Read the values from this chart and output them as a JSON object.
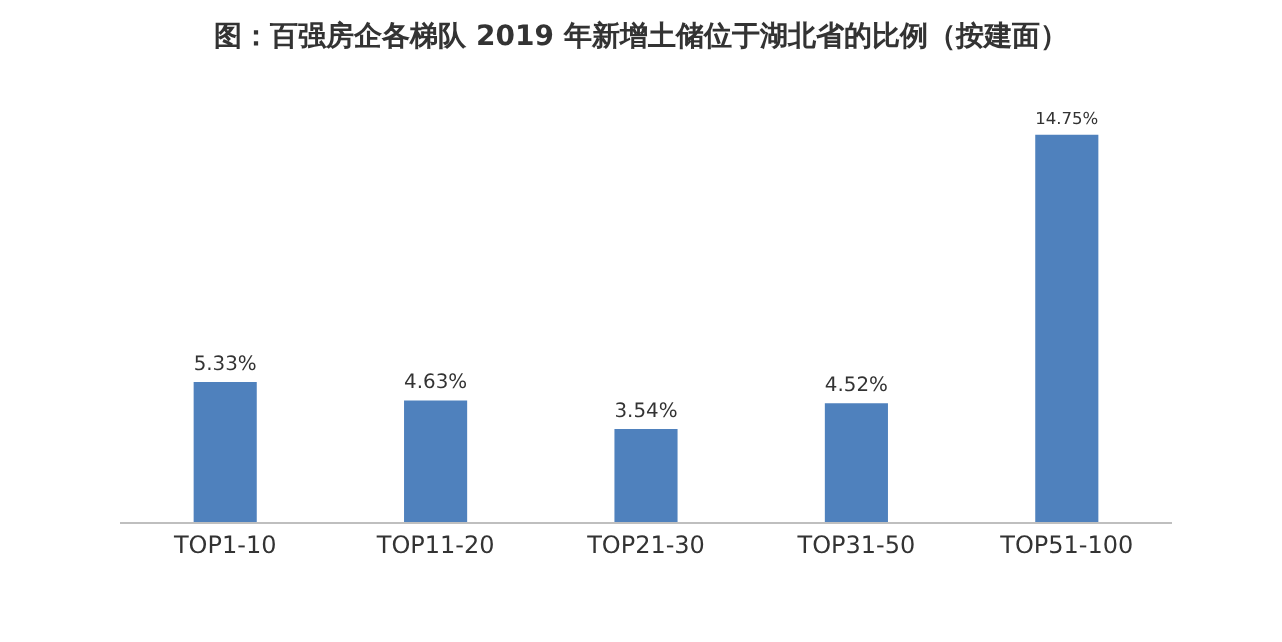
{
  "chart_data": {
    "type": "bar",
    "title": "图：百强房企各梯队 2019 年新增土储位于湖北省的比例（按建面）",
    "categories": [
      "TOP1-10",
      "TOP11-20",
      "TOP21-30",
      "TOP31-50",
      "TOP51-100"
    ],
    "values": [
      5.33,
      4.63,
      3.54,
      4.52,
      14.75
    ],
    "value_labels": [
      "5.33%",
      "4.63%",
      "3.54%",
      "4.52%",
      "14.75%"
    ],
    "color": "#4f81bd"
  }
}
